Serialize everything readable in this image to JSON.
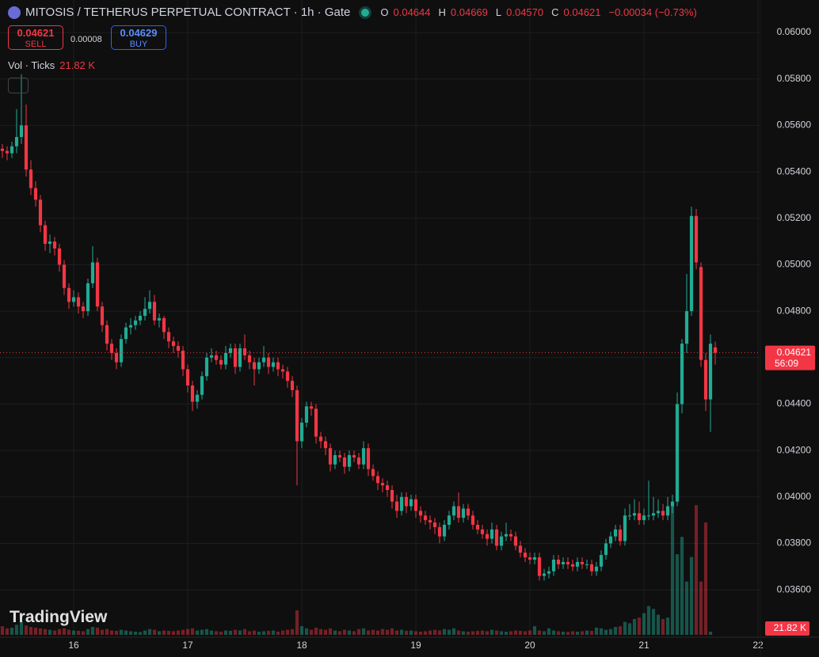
{
  "chart_data": {
    "type": "candlestick",
    "title": "MITOSIS / TETHERUS PERPETUAL CONTRACT · 1h · Gate",
    "legend": {
      "o_label": "O",
      "o": "0.04644",
      "h_label": "H",
      "h": "0.04669",
      "l_label": "L",
      "l": "0.04570",
      "c_label": "C",
      "c": "0.04621",
      "change": "−0.00034 (−0.73%)"
    },
    "trade": {
      "sell_price": "0.04621",
      "sell_label": "SELL",
      "spread": "0.00008",
      "buy_price": "0.04629",
      "buy_label": "BUY"
    },
    "volume_title": "Vol · Ticks",
    "volume_last": "21.82 K",
    "last_price": {
      "value": 0.04621,
      "label": "0.04621"
    },
    "countdown": "56:09",
    "brand": "TradingView",
    "up_color": "#22ab94",
    "down_color": "#f23645",
    "grid": true,
    "xlim": [
      -0.5,
      159.5
    ],
    "xticks": [
      {
        "value": 15,
        "label": "16"
      },
      {
        "value": 39,
        "label": "17"
      },
      {
        "value": 63,
        "label": "18"
      },
      {
        "value": 87,
        "label": "19"
      },
      {
        "value": 111,
        "label": "20"
      },
      {
        "value": 135,
        "label": "21"
      },
      {
        "value": 159,
        "label": "22"
      }
    ],
    "ylim": [
      0.03396,
      0.0614
    ],
    "yticks": [
      {
        "value": 0.036,
        "label": "0.03600"
      },
      {
        "value": 0.038,
        "label": "0.03800"
      },
      {
        "value": 0.04,
        "label": "0.04000"
      },
      {
        "value": 0.042,
        "label": "0.04200"
      },
      {
        "value": 0.044,
        "label": "0.04400"
      },
      {
        "value": 0.046,
        "label": "0.04600"
      },
      {
        "value": 0.048,
        "label": "0.04800"
      },
      {
        "value": 0.05,
        "label": "0.05000"
      },
      {
        "value": 0.052,
        "label": "0.05200"
      },
      {
        "value": 0.054,
        "label": "0.05400"
      },
      {
        "value": 0.056,
        "label": "0.05600"
      },
      {
        "value": 0.058,
        "label": "0.05800"
      },
      {
        "value": 0.06,
        "label": "0.06000"
      }
    ],
    "vlim": [
      0,
      1000000
    ],
    "ohlc": [
      [
        0.055,
        0.0552,
        0.0546,
        0.0549
      ],
      [
        0.0549,
        0.0551,
        0.0545,
        0.0548
      ],
      [
        0.0548,
        0.0553,
        0.0546,
        0.0551
      ],
      [
        0.0551,
        0.0567,
        0.0548,
        0.0555
      ],
      [
        0.0555,
        0.0582,
        0.0552,
        0.056
      ],
      [
        0.056,
        0.0569,
        0.0538,
        0.0541
      ],
      [
        0.0541,
        0.0545,
        0.053,
        0.0533
      ],
      [
        0.0533,
        0.0536,
        0.0525,
        0.0528
      ],
      [
        0.0528,
        0.053,
        0.0514,
        0.0517
      ],
      [
        0.0517,
        0.0519,
        0.0506,
        0.0509
      ],
      [
        0.0509,
        0.0513,
        0.0505,
        0.051
      ],
      [
        0.051,
        0.0512,
        0.0504,
        0.0507
      ],
      [
        0.0507,
        0.0509,
        0.0497,
        0.05
      ],
      [
        0.05,
        0.0502,
        0.0487,
        0.049
      ],
      [
        0.049,
        0.0492,
        0.0481,
        0.0484
      ],
      [
        0.0484,
        0.0489,
        0.0482,
        0.0486
      ],
      [
        0.0486,
        0.0488,
        0.0479,
        0.0482
      ],
      [
        0.0482,
        0.0484,
        0.0477,
        0.048
      ],
      [
        0.048,
        0.0494,
        0.0478,
        0.0492
      ],
      [
        0.0492,
        0.0508,
        0.049,
        0.0501
      ],
      [
        0.0501,
        0.0503,
        0.048,
        0.0482
      ],
      [
        0.0482,
        0.0484,
        0.0471,
        0.0474
      ],
      [
        0.0474,
        0.0476,
        0.0463,
        0.0466
      ],
      [
        0.0466,
        0.0468,
        0.0459,
        0.0462
      ],
      [
        0.0462,
        0.0464,
        0.0455,
        0.0458
      ],
      [
        0.0458,
        0.047,
        0.0456,
        0.0468
      ],
      [
        0.0468,
        0.0475,
        0.0466,
        0.0473
      ],
      [
        0.0473,
        0.0477,
        0.047,
        0.0474
      ],
      [
        0.0474,
        0.0478,
        0.0472,
        0.0476
      ],
      [
        0.0476,
        0.048,
        0.0474,
        0.0478
      ],
      [
        0.0478,
        0.0486,
        0.0476,
        0.0481
      ],
      [
        0.0481,
        0.0489,
        0.0479,
        0.0484
      ],
      [
        0.0484,
        0.0487,
        0.0474,
        0.0476
      ],
      [
        0.0476,
        0.0479,
        0.0473,
        0.0477
      ],
      [
        0.0477,
        0.0478,
        0.0468,
        0.0471
      ],
      [
        0.0471,
        0.0473,
        0.0464,
        0.0467
      ],
      [
        0.0467,
        0.0469,
        0.0462,
        0.0465
      ],
      [
        0.0465,
        0.0467,
        0.046,
        0.0463
      ],
      [
        0.0463,
        0.0465,
        0.0452,
        0.0455
      ],
      [
        0.0455,
        0.0457,
        0.0445,
        0.0448
      ],
      [
        0.0448,
        0.045,
        0.0437,
        0.0441
      ],
      [
        0.0441,
        0.0446,
        0.0438,
        0.0444
      ],
      [
        0.0444,
        0.0454,
        0.0442,
        0.0452
      ],
      [
        0.0452,
        0.0462,
        0.045,
        0.046
      ],
      [
        0.046,
        0.0464,
        0.0458,
        0.0461
      ],
      [
        0.0461,
        0.0463,
        0.0457,
        0.0459
      ],
      [
        0.0459,
        0.0461,
        0.0455,
        0.0457
      ],
      [
        0.0457,
        0.0465,
        0.0455,
        0.0462
      ],
      [
        0.0462,
        0.0466,
        0.046,
        0.0464
      ],
      [
        0.0464,
        0.0466,
        0.0453,
        0.0456
      ],
      [
        0.0456,
        0.0466,
        0.0454,
        0.0464
      ],
      [
        0.0464,
        0.047,
        0.0459,
        0.0461
      ],
      [
        0.0461,
        0.0463,
        0.0455,
        0.0458
      ],
      [
        0.0458,
        0.046,
        0.0448,
        0.0455
      ],
      [
        0.0455,
        0.046,
        0.0453,
        0.0458
      ],
      [
        0.0458,
        0.0465,
        0.0456,
        0.046
      ],
      [
        0.046,
        0.0462,
        0.0453,
        0.0456
      ],
      [
        0.0456,
        0.046,
        0.0454,
        0.0458
      ],
      [
        0.0458,
        0.046,
        0.0452,
        0.0455
      ],
      [
        0.0455,
        0.0457,
        0.0451,
        0.0454
      ],
      [
        0.0454,
        0.0456,
        0.0447,
        0.045
      ],
      [
        0.045,
        0.0452,
        0.0443,
        0.0446
      ],
      [
        0.0446,
        0.0448,
        0.0405,
        0.0424
      ],
      [
        0.0424,
        0.0434,
        0.0421,
        0.0432
      ],
      [
        0.0432,
        0.0441,
        0.043,
        0.0439
      ],
      [
        0.0439,
        0.0441,
        0.0435,
        0.0438
      ],
      [
        0.0438,
        0.044,
        0.0423,
        0.0426
      ],
      [
        0.0426,
        0.0428,
        0.0421,
        0.0424
      ],
      [
        0.0424,
        0.0426,
        0.0418,
        0.0421
      ],
      [
        0.0421,
        0.0423,
        0.0411,
        0.0414
      ],
      [
        0.0414,
        0.042,
        0.0412,
        0.0418
      ],
      [
        0.0418,
        0.042,
        0.0415,
        0.0417
      ],
      [
        0.0417,
        0.0419,
        0.041,
        0.0413
      ],
      [
        0.0413,
        0.042,
        0.0411,
        0.0418
      ],
      [
        0.0418,
        0.042,
        0.0415,
        0.0417
      ],
      [
        0.0417,
        0.0419,
        0.0412,
        0.0414
      ],
      [
        0.0414,
        0.0424,
        0.0412,
        0.0421
      ],
      [
        0.0421,
        0.0423,
        0.0409,
        0.0412
      ],
      [
        0.0412,
        0.0414,
        0.0407,
        0.0409
      ],
      [
        0.0409,
        0.0411,
        0.0403,
        0.0406
      ],
      [
        0.0406,
        0.0408,
        0.0402,
        0.0405
      ],
      [
        0.0405,
        0.0407,
        0.04,
        0.0403
      ],
      [
        0.0403,
        0.0405,
        0.0395,
        0.0398
      ],
      [
        0.0398,
        0.0401,
        0.0391,
        0.0394
      ],
      [
        0.0394,
        0.0402,
        0.0392,
        0.04
      ],
      [
        0.04,
        0.0402,
        0.0393,
        0.0396
      ],
      [
        0.0396,
        0.0401,
        0.0394,
        0.0399
      ],
      [
        0.0399,
        0.0401,
        0.0391,
        0.0394
      ],
      [
        0.0394,
        0.0396,
        0.0389,
        0.0392
      ],
      [
        0.0392,
        0.0394,
        0.0388,
        0.039
      ],
      [
        0.039,
        0.0392,
        0.0386,
        0.0389
      ],
      [
        0.0389,
        0.0391,
        0.0384,
        0.0387
      ],
      [
        0.0387,
        0.0389,
        0.038,
        0.0383
      ],
      [
        0.0383,
        0.039,
        0.0381,
        0.0388
      ],
      [
        0.0388,
        0.0394,
        0.0386,
        0.0392
      ],
      [
        0.0392,
        0.0398,
        0.039,
        0.0396
      ],
      [
        0.0396,
        0.0402,
        0.0389,
        0.0391
      ],
      [
        0.0391,
        0.0397,
        0.0389,
        0.0395
      ],
      [
        0.0395,
        0.0397,
        0.039,
        0.0392
      ],
      [
        0.0392,
        0.0394,
        0.0386,
        0.0388
      ],
      [
        0.0388,
        0.039,
        0.0384,
        0.0386
      ],
      [
        0.0386,
        0.0388,
        0.0382,
        0.0384
      ],
      [
        0.0384,
        0.0386,
        0.0379,
        0.0382
      ],
      [
        0.0382,
        0.0389,
        0.038,
        0.0386
      ],
      [
        0.0386,
        0.0388,
        0.0377,
        0.0379
      ],
      [
        0.0379,
        0.0385,
        0.0377,
        0.0383
      ],
      [
        0.0383,
        0.0389,
        0.0381,
        0.0384
      ],
      [
        0.0384,
        0.0386,
        0.0381,
        0.0383
      ],
      [
        0.0383,
        0.0385,
        0.0377,
        0.0379
      ],
      [
        0.0379,
        0.0381,
        0.0374,
        0.0376
      ],
      [
        0.0376,
        0.0378,
        0.0372,
        0.0374
      ],
      [
        0.0374,
        0.0376,
        0.0371,
        0.0373
      ],
      [
        0.0373,
        0.0376,
        0.0371,
        0.0374
      ],
      [
        0.0374,
        0.0376,
        0.0364,
        0.0366
      ],
      [
        0.0366,
        0.0369,
        0.0364,
        0.0367
      ],
      [
        0.0367,
        0.037,
        0.0365,
        0.0368
      ],
      [
        0.0368,
        0.0375,
        0.0366,
        0.0373
      ],
      [
        0.0373,
        0.0375,
        0.0369,
        0.0371
      ],
      [
        0.0371,
        0.0374,
        0.0369,
        0.0372
      ],
      [
        0.0372,
        0.0374,
        0.0369,
        0.0371
      ],
      [
        0.0371,
        0.0373,
        0.0368,
        0.037
      ],
      [
        0.037,
        0.0374,
        0.0368,
        0.0372
      ],
      [
        0.0372,
        0.0374,
        0.0369,
        0.0371
      ],
      [
        0.0371,
        0.0373,
        0.0369,
        0.0371
      ],
      [
        0.0371,
        0.0373,
        0.0366,
        0.0368
      ],
      [
        0.0368,
        0.0372,
        0.0366,
        0.037
      ],
      [
        0.037,
        0.0377,
        0.0368,
        0.0375
      ],
      [
        0.0375,
        0.0382,
        0.0373,
        0.038
      ],
      [
        0.038,
        0.0385,
        0.0378,
        0.0383
      ],
      [
        0.0383,
        0.0388,
        0.0381,
        0.0386
      ],
      [
        0.0386,
        0.0388,
        0.0379,
        0.0381
      ],
      [
        0.0381,
        0.0395,
        0.0379,
        0.0392
      ],
      [
        0.0392,
        0.0397,
        0.039,
        0.0392
      ],
      [
        0.0392,
        0.0399,
        0.039,
        0.0393
      ],
      [
        0.0393,
        0.0398,
        0.0388,
        0.039
      ],
      [
        0.039,
        0.0395,
        0.0388,
        0.0392
      ],
      [
        0.0392,
        0.0407,
        0.039,
        0.0392
      ],
      [
        0.0392,
        0.04,
        0.039,
        0.0393
      ],
      [
        0.0393,
        0.0399,
        0.0391,
        0.0394
      ],
      [
        0.0394,
        0.0397,
        0.039,
        0.0392
      ],
      [
        0.0392,
        0.04,
        0.039,
        0.0396
      ],
      [
        0.0396,
        0.0401,
        0.0393,
        0.0398
      ],
      [
        0.0398,
        0.0445,
        0.0396,
        0.044
      ],
      [
        0.044,
        0.0468,
        0.0436,
        0.0466
      ],
      [
        0.0466,
        0.0496,
        0.0462,
        0.048
      ],
      [
        0.048,
        0.0525,
        0.0478,
        0.0521
      ],
      [
        0.0521,
        0.0524,
        0.0498,
        0.0501
      ],
      [
        0.0499,
        0.0501,
        0.0456,
        0.0459
      ],
      [
        0.0459,
        0.0462,
        0.0437,
        0.0442
      ],
      [
        0.0442,
        0.047,
        0.0428,
        0.0466
      ],
      [
        0.04644,
        0.04669,
        0.0457,
        0.04621
      ]
    ],
    "volumes": [
      60000,
      45000,
      50000,
      70000,
      90000,
      65000,
      55000,
      50000,
      45000,
      40000,
      35000,
      30000,
      40000,
      45000,
      35000,
      30000,
      28000,
      25000,
      40000,
      55000,
      50000,
      35000,
      40000,
      30000,
      28000,
      35000,
      30000,
      25000,
      22000,
      20000,
      30000,
      40000,
      35000,
      25000,
      30000,
      28000,
      25000,
      30000,
      35000,
      40000,
      45000,
      30000,
      35000,
      40000,
      30000,
      25000,
      22000,
      30000,
      28000,
      35000,
      30000,
      40000,
      25000,
      30000,
      22000,
      25000,
      28000,
      30000,
      22000,
      30000,
      35000,
      40000,
      170000,
      60000,
      45000,
      35000,
      50000,
      40000,
      35000,
      45000,
      30000,
      25000,
      35000,
      30000,
      25000,
      40000,
      45000,
      30000,
      35000,
      30000,
      40000,
      35000,
      45000,
      30000,
      35000,
      28000,
      30000,
      25000,
      22000,
      25000,
      30000,
      35000,
      30000,
      40000,
      35000,
      45000,
      30000,
      25000,
      22000,
      25000,
      28000,
      30000,
      25000,
      35000,
      30000,
      25000,
      22000,
      25000,
      30000,
      28000,
      25000,
      30000,
      60000,
      30000,
      25000,
      45000,
      30000,
      25000,
      22000,
      20000,
      25000,
      22000,
      25000,
      30000,
      28000,
      50000,
      45000,
      35000,
      40000,
      55000,
      60000,
      90000,
      80000,
      110000,
      120000,
      150000,
      200000,
      180000,
      140000,
      110000,
      120000,
      900000,
      560000,
      680000,
      370000,
      540000,
      900000,
      370000,
      780000,
      21820
    ]
  }
}
